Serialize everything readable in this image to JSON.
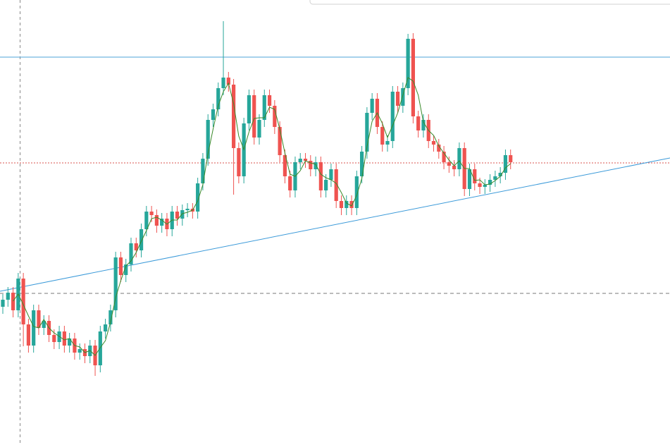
{
  "chart_data": {
    "type": "candlestick",
    "ylim": [
      0,
      631
    ],
    "up_color": "#26a69a",
    "down_color": "#ef5350",
    "ma_color": "#3a8a2a",
    "open": [
      196,
      206,
      216,
      191,
      236,
      171,
      141,
      191,
      166,
      176,
      156,
      146,
      161,
      141,
      151,
      131,
      136,
      126,
      141,
      113,
      161,
      171,
      191,
      266,
      241,
      256,
      286,
      276,
      306,
      331,
      326,
      311,
      321,
      306,
      331,
      321,
      333,
      335,
      331,
      371,
      406,
      461,
      476,
      506,
      521,
      511,
      421,
      381,
      456,
      496,
      436,
      461,
      496,
      481,
      451,
      411,
      381,
      361,
      401,
      406,
      403,
      391,
      401,
      361,
      376,
      391,
      346,
      336,
      346,
      336,
      381,
      416,
      471,
      491,
      451,
      426,
      431,
      501,
      481,
      506,
      576,
      466,
      446,
      461,
      431,
      426,
      416,
      401,
      396,
      391,
      421,
      363,
      391,
      371,
      366,
      369,
      376,
      381,
      386,
      411
    ],
    "high": [
      214,
      224,
      224,
      244,
      244,
      179,
      199,
      199,
      184,
      184,
      164,
      169,
      169,
      159,
      159,
      144,
      144,
      149,
      149,
      169,
      179,
      199,
      274,
      274,
      264,
      294,
      294,
      314,
      339,
      339,
      334,
      329,
      329,
      339,
      339,
      341,
      343,
      343,
      379,
      414,
      469,
      484,
      514,
      601,
      529,
      519,
      429,
      464,
      504,
      504,
      469,
      504,
      504,
      489,
      459,
      419,
      389,
      409,
      414,
      414,
      411,
      409,
      409,
      384,
      399,
      399,
      354,
      354,
      354,
      389,
      424,
      479,
      499,
      499,
      459,
      439,
      509,
      509,
      514,
      583,
      584,
      474,
      469,
      469,
      439,
      434,
      424,
      409,
      404,
      429,
      429,
      399,
      399,
      379,
      377,
      384,
      389,
      394,
      419,
      419
    ],
    "low": [
      186,
      196,
      181,
      181,
      140,
      131,
      131,
      156,
      156,
      146,
      136,
      136,
      131,
      131,
      121,
      121,
      116,
      116,
      98,
      103,
      151,
      161,
      181,
      231,
      231,
      246,
      266,
      266,
      296,
      316,
      301,
      301,
      296,
      296,
      311,
      311,
      323,
      321,
      321,
      361,
      396,
      451,
      466,
      496,
      501,
      355,
      371,
      371,
      446,
      426,
      426,
      451,
      471,
      441,
      401,
      371,
      351,
      351,
      391,
      393,
      381,
      381,
      351,
      351,
      366,
      336,
      326,
      326,
      326,
      326,
      371,
      406,
      461,
      441,
      416,
      416,
      421,
      471,
      471,
      496,
      456,
      436,
      436,
      421,
      416,
      406,
      391,
      386,
      381,
      381,
      353,
      353,
      361,
      356,
      356,
      359,
      366,
      371,
      376,
      391
    ],
    "close": [
      206,
      216,
      191,
      236,
      171,
      141,
      191,
      166,
      176,
      156,
      146,
      161,
      141,
      151,
      131,
      136,
      126,
      141,
      113,
      161,
      171,
      191,
      266,
      241,
      256,
      286,
      276,
      306,
      331,
      326,
      311,
      321,
      306,
      331,
      321,
      333,
      335,
      331,
      371,
      406,
      461,
      476,
      506,
      521,
      511,
      421,
      381,
      456,
      496,
      436,
      461,
      496,
      481,
      451,
      411,
      381,
      361,
      401,
      406,
      403,
      391,
      401,
      361,
      376,
      391,
      346,
      336,
      346,
      336,
      381,
      416,
      471,
      491,
      451,
      426,
      431,
      501,
      481,
      506,
      576,
      466,
      446,
      461,
      431,
      426,
      416,
      401,
      396,
      391,
      421,
      363,
      391,
      371,
      366,
      369,
      376,
      381,
      386,
      411,
      401
    ],
    "ma": [
      null,
      null,
      204,
      214,
      199,
      183,
      168,
      166,
      178,
      166,
      159,
      154,
      149,
      151,
      141,
      139,
      131,
      134,
      127,
      138,
      148,
      174,
      209,
      233,
      254,
      261,
      273,
      289,
      304,
      321,
      323,
      319,
      313,
      319,
      319,
      328,
      330,
      333,
      346,
      369,
      413,
      448,
      481,
      501,
      513,
      484,
      438,
      419,
      444,
      463,
      464,
      464,
      479,
      476,
      448,
      414,
      384,
      381,
      389,
      403,
      400,
      398,
      384,
      379,
      376,
      371,
      358,
      343,
      339,
      354,
      378,
      423,
      459,
      471,
      456,
      436,
      453,
      471,
      496,
      521,
      516,
      496,
      458,
      446,
      439,
      424,
      414,
      404,
      396,
      403,
      392,
      392,
      375,
      376,
      369,
      370,
      375,
      381,
      393,
      399
    ],
    "hlines": [
      {
        "value": 550,
        "color": "#4da3d8",
        "style": "solid"
      },
      {
        "value": 400,
        "color": "#d9534f",
        "style": "dotted"
      },
      {
        "value": 215,
        "color": "#777777",
        "style": "dashed"
      }
    ],
    "trendline": {
      "values": [
        218,
        407
      ],
      "color": "#3b9ad9"
    }
  }
}
